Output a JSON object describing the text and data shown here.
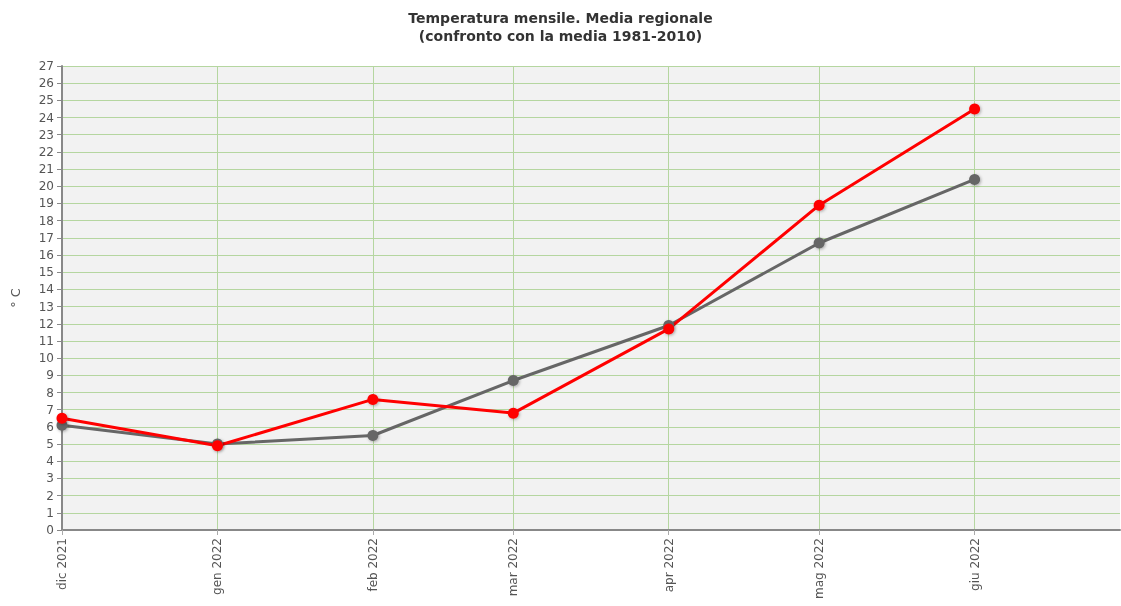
{
  "chart_data": {
    "type": "line",
    "title": "Temperatura mensile. Media regionale",
    "subtitle": "(confronto con la media 1981-2010)",
    "ylabel": "° C",
    "x": [
      "2021-12-01",
      "2022-01-01",
      "2022-02-01",
      "2022-03-01",
      "2022-04-01",
      "2022-05-01",
      "2022-06-01"
    ],
    "xlim": [
      "2021-12-01",
      "2022-06-30"
    ],
    "xticks": [
      {
        "value": "2021-12-01",
        "label": "dic 2021"
      },
      {
        "value": "2022-01-01",
        "label": "gen 2022"
      },
      {
        "value": "2022-02-01",
        "label": "feb 2022"
      },
      {
        "value": "2022-03-01",
        "label": "mar 2022"
      },
      {
        "value": "2022-04-01",
        "label": "apr 2022"
      },
      {
        "value": "2022-05-01",
        "label": "mag 2022"
      },
      {
        "value": "2022-06-01",
        "label": "giu 2022"
      }
    ],
    "series": [
      {
        "color": "#666666",
        "values": [
          6.1,
          5.0,
          5.5,
          8.7,
          11.9,
          16.7,
          20.4
        ]
      },
      {
        "color": "#ff0000",
        "values": [
          6.5,
          4.9,
          7.6,
          6.8,
          11.7,
          18.9,
          24.5
        ]
      }
    ],
    "ylim": [
      0,
      27
    ],
    "yticks": [
      0,
      1,
      2,
      3,
      4,
      5,
      6,
      7,
      8,
      9,
      10,
      11,
      12,
      13,
      14,
      15,
      16,
      17,
      18,
      19,
      20,
      21,
      22,
      23,
      24,
      25,
      26,
      27
    ],
    "grid": true,
    "marker": "circle",
    "line_style": "solid"
  }
}
